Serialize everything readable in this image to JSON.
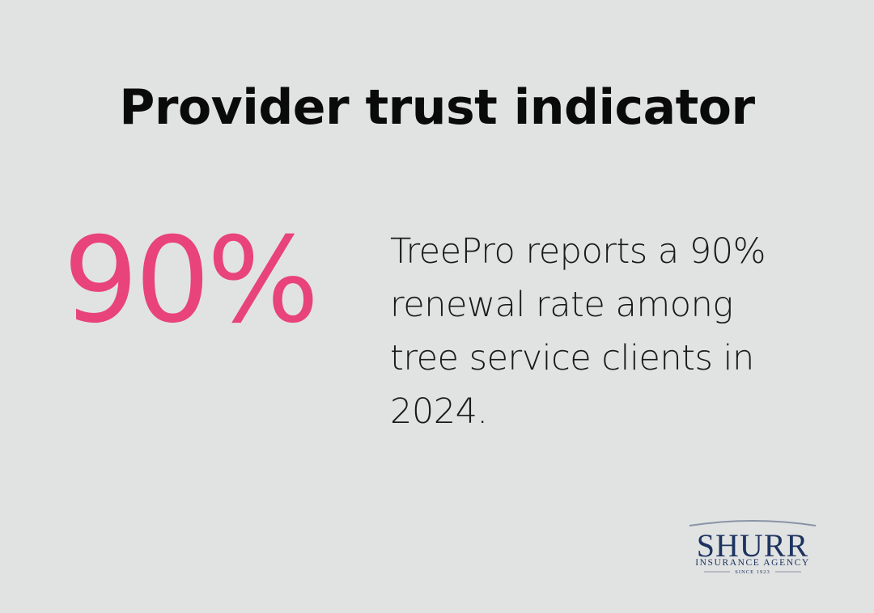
{
  "header": {
    "title": "Provider trust indicator"
  },
  "stat": {
    "value": "90%",
    "description": "TreePro reports a 90% renewal rate among tree service clients in 2024."
  },
  "logo": {
    "name": "SHURR",
    "tagline": "INSURANCE AGENCY",
    "since": "SINCE 1923"
  }
}
